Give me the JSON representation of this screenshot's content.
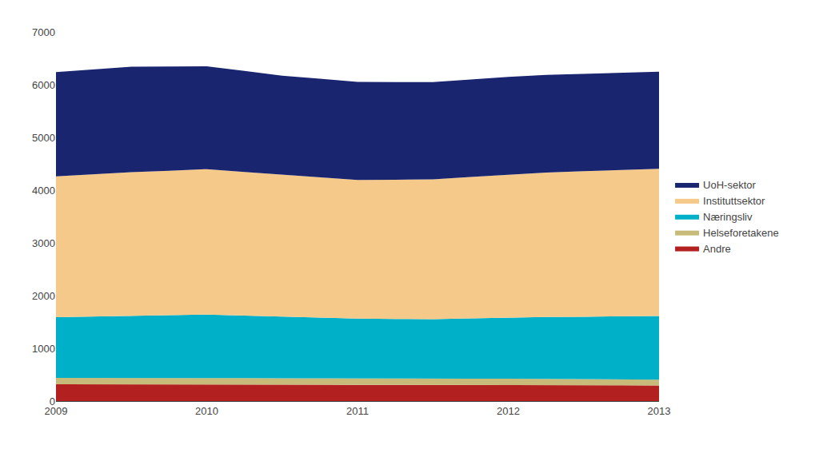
{
  "chart_data": {
    "type": "area",
    "stacked": true,
    "x": [
      2009,
      2009.25,
      2009.5,
      2009.75,
      2010,
      2010.25,
      2010.5,
      2010.75,
      2011,
      2011.25,
      2011.5,
      2011.75,
      2012,
      2012.25,
      2012.5,
      2012.75,
      2013
    ],
    "series": [
      {
        "name": "Andre",
        "color": "#b22020",
        "values": [
          320,
          320,
          318,
          316,
          315,
          313,
          311,
          310,
          308,
          308,
          308,
          308,
          308,
          305,
          302,
          298,
          295
        ]
      },
      {
        "name": "Helseforetakene",
        "color": "#c8bb7a",
        "values": [
          120,
          121,
          122,
          123,
          124,
          122,
          120,
          118,
          116,
          115,
          115,
          116,
          117,
          115,
          113,
          112,
          110
        ]
      },
      {
        "name": "Næringsliv",
        "color": "#00b0c8",
        "values": [
          1150,
          1165,
          1180,
          1190,
          1200,
          1185,
          1170,
          1155,
          1140,
          1135,
          1130,
          1145,
          1160,
          1175,
          1185,
          1200,
          1210
        ]
      },
      {
        "name": "Instituttsektor",
        "color": "#f5c98a",
        "values": [
          2670,
          2695,
          2720,
          2740,
          2760,
          2725,
          2690,
          2660,
          2630,
          2640,
          2650,
          2680,
          2710,
          2740,
          2760,
          2775,
          2790
        ]
      },
      {
        "name": "UoH-sektor",
        "color": "#1a2570",
        "values": [
          1980,
          1990,
          2000,
          1975,
          1950,
          1915,
          1880,
          1870,
          1860,
          1852,
          1845,
          1848,
          1852,
          1850,
          1847,
          1843,
          1840
        ]
      }
    ],
    "xlim": [
      2009,
      2013
    ],
    "xticks": [
      2009,
      2010,
      2011,
      2012,
      2013
    ],
    "ylim": [
      0,
      7000
    ],
    "yticks": [
      0,
      1000,
      2000,
      3000,
      4000,
      5000,
      6000,
      7000
    ],
    "grid": true,
    "legend": "right"
  }
}
